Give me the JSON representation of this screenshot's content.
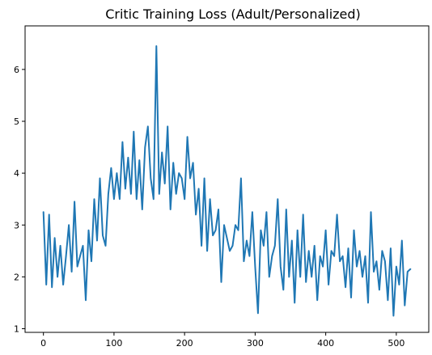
{
  "chart_data": {
    "type": "line",
    "title": "Critic Training Loss (Adult/Personalized)",
    "xlabel": "",
    "ylabel": "",
    "xlim": [
      -26,
      546
    ],
    "ylim": [
      0.93,
      6.84
    ],
    "x_ticks": [
      0,
      100,
      200,
      300,
      400,
      500
    ],
    "y_ticks": [
      1,
      2,
      3,
      4,
      5,
      6
    ],
    "grid": false,
    "legend": "none",
    "series": [
      {
        "color": "#1f77b4",
        "x_start": 0,
        "x_step": 4,
        "values": [
          3.25,
          1.85,
          3.2,
          1.8,
          2.75,
          2.0,
          2.6,
          1.85,
          2.4,
          3.0,
          2.1,
          3.45,
          2.2,
          2.4,
          2.6,
          1.55,
          2.9,
          2.3,
          3.5,
          2.7,
          3.9,
          2.8,
          2.6,
          3.6,
          4.1,
          3.5,
          4.0,
          3.5,
          4.6,
          3.7,
          4.3,
          3.6,
          4.8,
          3.5,
          4.25,
          3.3,
          4.5,
          4.9,
          3.9,
          3.5,
          6.45,
          3.6,
          4.4,
          3.8,
          4.9,
          3.3,
          4.2,
          3.6,
          4.0,
          3.9,
          3.5,
          4.7,
          3.9,
          4.2,
          3.2,
          3.7,
          2.6,
          3.9,
          2.5,
          3.5,
          2.8,
          2.9,
          3.3,
          1.9,
          3.0,
          2.75,
          2.5,
          2.6,
          3.0,
          2.9,
          3.9,
          2.3,
          2.7,
          2.4,
          3.25,
          2.2,
          1.3,
          2.9,
          2.6,
          3.25,
          2.0,
          2.4,
          2.6,
          3.5,
          2.2,
          1.75,
          3.3,
          2.0,
          2.7,
          1.5,
          2.9,
          2.0,
          3.2,
          1.9,
          2.5,
          2.0,
          2.6,
          1.55,
          2.4,
          2.2,
          2.9,
          1.85,
          2.5,
          2.4,
          3.2,
          2.3,
          2.4,
          1.8,
          2.55,
          1.6,
          2.9,
          2.2,
          2.5,
          2.0,
          2.4,
          1.5,
          3.25,
          2.1,
          2.3,
          1.75,
          2.5,
          2.3,
          1.55,
          2.55,
          1.25,
          2.2,
          1.85,
          2.7,
          1.45,
          2.1,
          2.15
        ]
      }
    ]
  }
}
